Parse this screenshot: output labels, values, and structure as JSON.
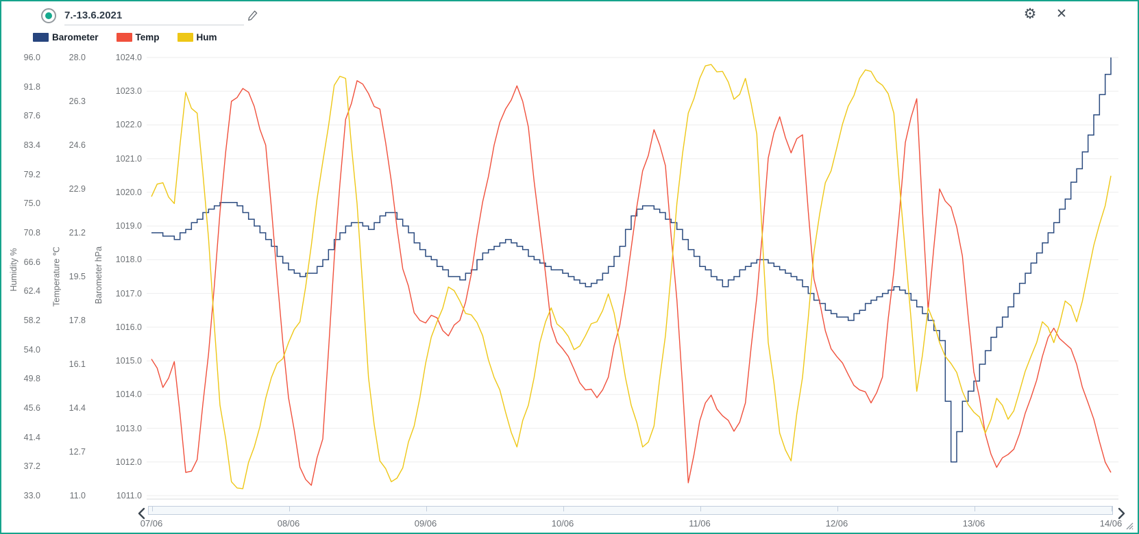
{
  "header": {
    "title_value": "7.-13.6.2021",
    "icons": {
      "record": "record-circle-icon",
      "edit": "pencil-icon",
      "settings": "gear-icon",
      "close": "close-icon",
      "settings_glyph": "⚙",
      "close_glyph": "✕"
    }
  },
  "legend": [
    {
      "label": "Barometer",
      "color": "#27457e"
    },
    {
      "label": "Temp",
      "color": "#f0503c"
    },
    {
      "label": "Hum",
      "color": "#eec716"
    }
  ],
  "colors": {
    "border": "#16a48c",
    "grid": "#ededee",
    "axis_line": "#d8dbde",
    "axis_text": "#6e7276",
    "band_fill": "#f4f8fb",
    "band_border": "#c2cedd",
    "chevron": "#3c4650"
  },
  "scrollbar": {
    "left_icon": "chevron-left-icon",
    "right_icon": "chevron-right-icon",
    "resize_icon": "resize-handle-icon"
  },
  "chart_data": {
    "type": "line",
    "title": "7.-13.6.2021",
    "x_unit": "hours since 07/06 00:00",
    "x_step_hours": 2,
    "x_range_hours": [
      0,
      168
    ],
    "x_tick_labels": [
      "07/06",
      "08/06",
      "09/06",
      "10/06",
      "11/06",
      "12/06",
      "13/06",
      "14/06"
    ],
    "grid": "horizontal",
    "legend_position": "top-left",
    "axes": {
      "humidity": {
        "title": "Humidity %",
        "min": 33.0,
        "max": 96.0,
        "ticks": [
          "96.0",
          "91.8",
          "87.6",
          "83.4",
          "79.2",
          "75.0",
          "70.8",
          "66.6",
          "62.4",
          "58.2",
          "54.0",
          "49.8",
          "45.6",
          "41.4",
          "37.2",
          "33.0"
        ]
      },
      "temperature": {
        "title": "Temperature ℃",
        "min": 11.0,
        "max": 28.0,
        "ticks": [
          "28.0",
          "26.3",
          "24.6",
          "22.9",
          "21.2",
          "19.5",
          "17.8",
          "16.1",
          "14.4",
          "12.7",
          "11.0"
        ]
      },
      "barometer": {
        "title": "Barometer hPa",
        "min": 1011.0,
        "max": 1024.0,
        "ticks": [
          "1024.0",
          "1023.0",
          "1022.0",
          "1021.0",
          "1020.0",
          "1019.0",
          "1018.0",
          "1017.0",
          "1016.0",
          "1015.0",
          "1014.0",
          "1013.0",
          "1012.0",
          "1011.0"
        ]
      }
    },
    "series": [
      {
        "name": "Barometer",
        "axis": "barometer",
        "color": "#2a4a7f",
        "style": "step",
        "values": [
          1018.8,
          1018.7,
          1018.6,
          1018.9,
          1019.2,
          1019.5,
          1019.7,
          1019.7,
          1019.4,
          1019.0,
          1018.6,
          1018.1,
          1017.7,
          1017.5,
          1017.6,
          1018.0,
          1018.6,
          1019.0,
          1019.1,
          1018.9,
          1019.3,
          1019.4,
          1019.0,
          1018.5,
          1018.1,
          1017.8,
          1017.5,
          1017.4,
          1017.7,
          1018.2,
          1018.4,
          1018.6,
          1018.4,
          1018.1,
          1017.9,
          1017.7,
          1017.6,
          1017.4,
          1017.2,
          1017.4,
          1017.8,
          1018.4,
          1019.3,
          1019.6,
          1019.5,
          1019.2,
          1018.9,
          1018.3,
          1017.8,
          1017.5,
          1017.2,
          1017.5,
          1017.8,
          1018.0,
          1017.9,
          1017.7,
          1017.5,
          1017.2,
          1016.8,
          1016.5,
          1016.3,
          1016.2,
          1016.5,
          1016.8,
          1017.0,
          1017.2,
          1017.0,
          1016.6,
          1016.2,
          1015.6,
          1012.0,
          1013.8,
          1014.4,
          1015.3,
          1016.0,
          1016.6,
          1017.3,
          1017.9,
          1018.5,
          1019.1,
          1019.8,
          1020.7,
          1021.7,
          1022.9,
          1024.0
        ]
      },
      {
        "name": "Temp",
        "axis": "temperature",
        "color": "#f0503c",
        "style": "noisy",
        "values": [
          16.3,
          15.2,
          16.2,
          11.9,
          12.4,
          16.5,
          22.0,
          26.3,
          26.8,
          26.1,
          24.6,
          19.5,
          14.8,
          12.1,
          11.4,
          13.2,
          20.2,
          25.6,
          27.1,
          26.6,
          26.0,
          23.2,
          19.8,
          18.1,
          17.7,
          17.9,
          17.2,
          17.8,
          19.6,
          22.4,
          24.6,
          26.0,
          26.9,
          25.3,
          21.4,
          17.6,
          16.7,
          15.9,
          15.1,
          14.8,
          15.6,
          17.6,
          20.6,
          23.6,
          25.2,
          23.8,
          18.6,
          11.5,
          13.9,
          14.9,
          14.1,
          13.5,
          14.6,
          18.7,
          24.1,
          25.7,
          24.3,
          25.0,
          19.4,
          17.4,
          16.4,
          15.7,
          15.1,
          14.6,
          15.6,
          19.7,
          24.7,
          26.4,
          18.2,
          22.9,
          22.2,
          20.3,
          15.8,
          13.4,
          12.1,
          12.6,
          13.4,
          14.8,
          16.4,
          17.5,
          16.9,
          16.1,
          14.6,
          13.1,
          11.9
        ]
      },
      {
        "name": "Hum",
        "axis": "humidity",
        "color": "#eec716",
        "style": "noisy",
        "values": [
          76,
          78,
          75,
          91,
          88,
          70,
          46,
          35,
          34,
          40,
          47,
          52,
          55,
          58,
          69,
          81,
          92,
          93,
          75,
          50,
          38,
          35,
          37,
          43,
          52,
          58,
          63,
          61,
          59,
          56,
          50,
          45,
          40,
          46,
          55,
          60,
          57,
          54,
          56,
          58,
          62,
          55,
          46,
          40,
          43,
          56,
          75,
          88,
          93,
          95,
          94,
          90,
          93,
          85,
          55,
          42,
          38,
          50,
          68,
          78,
          83,
          89,
          93,
          94,
          92,
          88,
          68,
          48,
          60,
          55,
          52,
          48,
          45,
          42,
          47,
          44,
          48,
          53,
          58,
          55,
          61,
          58,
          65,
          72,
          79
        ]
      }
    ]
  }
}
